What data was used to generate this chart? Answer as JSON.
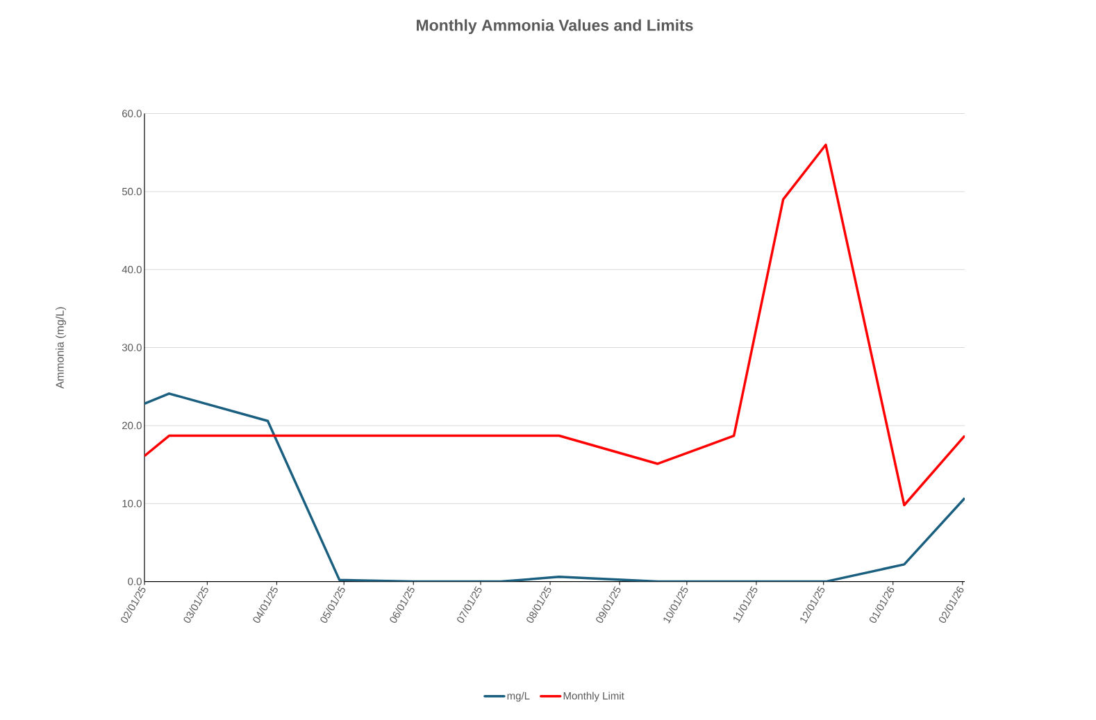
{
  "chart_data": {
    "type": "line",
    "title": "Monthly Ammonia Values and Limits",
    "ylabel": "Ammonia (mg/L)",
    "series": [
      {
        "name": "mg/L",
        "color": "#1a5f7f",
        "x": [
          "2025-02-01",
          "2025-02-12",
          "2025-03-28",
          "2025-04-29",
          "2025-06-01",
          "2025-07-10",
          "2025-08-05",
          "2025-09-18",
          "2025-12-02",
          "2026-01-06",
          "2026-02-02"
        ],
        "values": [
          22.8,
          24.1,
          20.6,
          0.2,
          0.0,
          0.0,
          0.6,
          0.0,
          0.0,
          2.2,
          10.7
        ]
      },
      {
        "name": "Monthly Limit",
        "color": "#ff0000",
        "x": [
          "2025-02-01",
          "2025-02-12",
          "2025-08-05",
          "2025-09-18",
          "2025-10-22",
          "2025-11-13",
          "2025-12-02",
          "2026-01-06",
          "2026-02-02"
        ],
        "values": [
          16.1,
          18.7,
          18.7,
          15.1,
          18.7,
          49.0,
          56.0,
          9.8,
          18.7
        ]
      }
    ],
    "xlim": [
      "2025-02-01",
      "2026-02-02"
    ],
    "xticks": [
      {
        "value": "2025-02-01",
        "label": "02/01/25"
      },
      {
        "value": "2025-03-01",
        "label": "03/01/25"
      },
      {
        "value": "2025-04-01",
        "label": "04/01/25"
      },
      {
        "value": "2025-05-01",
        "label": "05/01/25"
      },
      {
        "value": "2025-06-01",
        "label": "06/01/25"
      },
      {
        "value": "2025-07-01",
        "label": "07/01/25"
      },
      {
        "value": "2025-08-01",
        "label": "08/01/25"
      },
      {
        "value": "2025-09-01",
        "label": "09/01/25"
      },
      {
        "value": "2025-10-01",
        "label": "10/01/25"
      },
      {
        "value": "2025-11-01",
        "label": "11/01/25"
      },
      {
        "value": "2025-12-01",
        "label": "12/01/25"
      },
      {
        "value": "2026-01-01",
        "label": "01/01/26"
      },
      {
        "value": "2026-02-01",
        "label": "02/01/26"
      }
    ],
    "ylim": [
      0,
      60
    ],
    "yticks": [
      {
        "value": 0,
        "label": "0.0"
      },
      {
        "value": 10,
        "label": "10.0"
      },
      {
        "value": 20,
        "label": "20.0"
      },
      {
        "value": 30,
        "label": "30.0"
      },
      {
        "value": 40,
        "label": "40.0"
      },
      {
        "value": 50,
        "label": "50.0"
      },
      {
        "value": 60,
        "label": "60.0"
      }
    ],
    "grid": "y",
    "legend": "bottom"
  }
}
